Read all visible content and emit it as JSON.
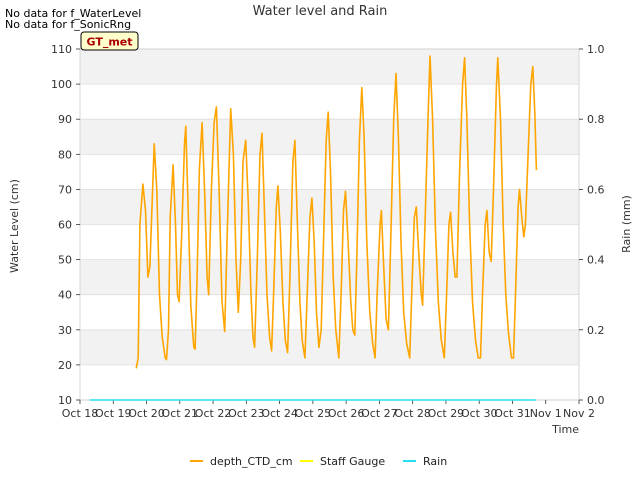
{
  "nodata": [
    "No data for f_WaterLevel",
    "No data for f_SonicRng"
  ],
  "badge": "GT_met",
  "chart_data": {
    "type": "line",
    "title": "Water level and Rain",
    "xlabel": "Time",
    "ylabel": "Water Level (cm)",
    "y2label": "Rain (mm)",
    "ylim": [
      10,
      110
    ],
    "y2lim": [
      0.0,
      1.0
    ],
    "yticks": [
      10,
      20,
      30,
      40,
      50,
      60,
      70,
      80,
      90,
      100,
      110
    ],
    "y2ticks": [
      "0.0",
      "0.2",
      "0.4",
      "0.6",
      "0.8",
      "1.0"
    ],
    "xlim": [
      18,
      33
    ],
    "xticks": [
      {
        "v": 18,
        "label": "Oct 18"
      },
      {
        "v": 19,
        "label": "Oct 19"
      },
      {
        "v": 20,
        "label": "Oct 20"
      },
      {
        "v": 21,
        "label": "Oct 21"
      },
      {
        "v": 22,
        "label": "Oct 22"
      },
      {
        "v": 23,
        "label": "Oct 23"
      },
      {
        "v": 24,
        "label": "Oct 24"
      },
      {
        "v": 25,
        "label": "Oct 25"
      },
      {
        "v": 26,
        "label": "Oct 26"
      },
      {
        "v": 27,
        "label": "Oct 27"
      },
      {
        "v": 28,
        "label": "Oct 28"
      },
      {
        "v": 29,
        "label": "Oct 29"
      },
      {
        "v": 30,
        "label": "Oct 30"
      },
      {
        "v": 31,
        "label": "Oct 31"
      },
      {
        "v": 32,
        "label": "Nov 1"
      },
      {
        "v": 33,
        "label": "Nov 2"
      }
    ],
    "grid": true,
    "legend_position": "bottom-center",
    "series": [
      {
        "name": "depth_CTD_cm",
        "color": "#FFA500",
        "axis": "left",
        "points": [
          [
            19.69,
            19
          ],
          [
            19.75,
            22
          ],
          [
            19.8,
            60
          ],
          [
            19.89,
            71.5
          ],
          [
            19.97,
            64
          ],
          [
            20.04,
            45
          ],
          [
            20.1,
            48
          ],
          [
            20.23,
            83
          ],
          [
            20.31,
            70
          ],
          [
            20.39,
            40
          ],
          [
            20.47,
            28
          ],
          [
            20.56,
            22
          ],
          [
            20.6,
            21.5
          ],
          [
            20.66,
            30
          ],
          [
            20.71,
            62
          ],
          [
            20.8,
            77
          ],
          [
            20.87,
            60
          ],
          [
            20.93,
            40
          ],
          [
            20.98,
            38
          ],
          [
            21.06,
            58
          ],
          [
            21.14,
            83
          ],
          [
            21.18,
            88
          ],
          [
            21.25,
            65
          ],
          [
            21.33,
            37
          ],
          [
            21.42,
            25
          ],
          [
            21.46,
            24.5
          ],
          [
            21.52,
            45
          ],
          [
            21.59,
            76
          ],
          [
            21.67,
            89
          ],
          [
            21.75,
            68
          ],
          [
            21.82,
            45
          ],
          [
            21.87,
            40
          ],
          [
            21.95,
            70
          ],
          [
            22.03,
            89
          ],
          [
            22.1,
            93.5
          ],
          [
            22.18,
            70
          ],
          [
            22.27,
            38
          ],
          [
            22.35,
            29.5
          ],
          [
            22.42,
            55
          ],
          [
            22.53,
            93
          ],
          [
            22.61,
            80
          ],
          [
            22.69,
            50
          ],
          [
            22.76,
            35
          ],
          [
            22.83,
            50
          ],
          [
            22.9,
            78
          ],
          [
            22.98,
            84
          ],
          [
            23.06,
            66
          ],
          [
            23.14,
            40
          ],
          [
            23.2,
            28
          ],
          [
            23.25,
            25
          ],
          [
            23.33,
            50
          ],
          [
            23.41,
            80
          ],
          [
            23.47,
            86
          ],
          [
            23.54,
            65
          ],
          [
            23.62,
            40
          ],
          [
            23.7,
            28
          ],
          [
            23.76,
            24
          ],
          [
            23.82,
            40
          ],
          [
            23.9,
            65
          ],
          [
            23.95,
            71
          ],
          [
            24.02,
            58
          ],
          [
            24.1,
            38
          ],
          [
            24.17,
            27
          ],
          [
            24.24,
            23.5
          ],
          [
            24.31,
            45
          ],
          [
            24.4,
            78
          ],
          [
            24.46,
            84
          ],
          [
            24.53,
            62
          ],
          [
            24.61,
            38
          ],
          [
            24.68,
            27
          ],
          [
            24.76,
            22
          ],
          [
            24.83,
            40
          ],
          [
            24.91,
            62
          ],
          [
            24.97,
            67.5
          ],
          [
            25.04,
            55
          ],
          [
            25.11,
            35
          ],
          [
            25.18,
            25
          ],
          [
            25.25,
            30
          ],
          [
            25.32,
            55
          ],
          [
            25.4,
            84
          ],
          [
            25.46,
            92
          ],
          [
            25.53,
            75
          ],
          [
            25.61,
            45
          ],
          [
            25.69,
            30
          ],
          [
            25.78,
            22
          ],
          [
            25.85,
            40
          ],
          [
            25.92,
            64
          ],
          [
            25.98,
            69.5
          ],
          [
            26.06,
            55
          ],
          [
            26.14,
            38
          ],
          [
            26.2,
            30
          ],
          [
            26.26,
            28.5
          ],
          [
            26.32,
            50
          ],
          [
            26.4,
            84
          ],
          [
            26.47,
            99
          ],
          [
            26.54,
            85
          ],
          [
            26.62,
            55
          ],
          [
            26.71,
            35
          ],
          [
            26.8,
            26
          ],
          [
            26.87,
            22
          ],
          [
            26.93,
            40
          ],
          [
            27.02,
            60
          ],
          [
            27.06,
            64
          ],
          [
            27.13,
            48
          ],
          [
            27.2,
            33
          ],
          [
            27.27,
            30
          ],
          [
            27.34,
            55
          ],
          [
            27.43,
            90
          ],
          [
            27.5,
            103
          ],
          [
            27.57,
            85
          ],
          [
            27.65,
            55
          ],
          [
            27.73,
            35
          ],
          [
            27.82,
            26
          ],
          [
            27.91,
            22
          ],
          [
            27.97,
            40
          ],
          [
            28.05,
            62
          ],
          [
            28.11,
            65
          ],
          [
            28.18,
            52
          ],
          [
            28.26,
            40
          ],
          [
            28.3,
            37
          ],
          [
            28.37,
            60
          ],
          [
            28.46,
            90
          ],
          [
            28.52,
            108
          ],
          [
            28.6,
            90
          ],
          [
            28.68,
            60
          ],
          [
            28.77,
            38
          ],
          [
            28.86,
            27
          ],
          [
            28.95,
            22
          ],
          [
            29.02,
            40
          ],
          [
            29.09,
            60
          ],
          [
            29.14,
            63.5
          ],
          [
            29.21,
            52
          ],
          [
            29.28,
            45
          ],
          [
            29.33,
            45
          ],
          [
            29.41,
            75
          ],
          [
            29.5,
            100
          ],
          [
            29.56,
            107.5
          ],
          [
            29.63,
            90
          ],
          [
            29.71,
            60
          ],
          [
            29.8,
            38
          ],
          [
            29.89,
            27
          ],
          [
            29.97,
            22
          ],
          [
            30.04,
            22
          ],
          [
            30.1,
            40
          ],
          [
            30.18,
            60
          ],
          [
            30.23,
            64
          ],
          [
            30.3,
            52
          ],
          [
            30.36,
            49.5
          ],
          [
            30.43,
            70
          ],
          [
            30.52,
            100
          ],
          [
            30.56,
            107.5
          ],
          [
            30.64,
            90
          ],
          [
            30.72,
            60
          ],
          [
            30.8,
            40
          ],
          [
            30.88,
            29
          ],
          [
            30.97,
            22
          ],
          [
            31.03,
            22
          ],
          [
            31.09,
            40
          ],
          [
            31.17,
            65
          ],
          [
            31.21,
            70
          ],
          [
            31.28,
            62
          ],
          [
            31.34,
            56.5
          ],
          [
            31.39,
            60
          ],
          [
            31.47,
            80
          ],
          [
            31.55,
            100
          ],
          [
            31.61,
            105
          ],
          [
            31.67,
            92
          ],
          [
            31.72,
            75.5
          ]
        ]
      },
      {
        "name": "Staff Gauge",
        "color": "#FFFF00",
        "axis": "left",
        "points": []
      },
      {
        "name": "Rain",
        "color": "#22E0F0",
        "axis": "right",
        "points": [
          [
            18.3,
            0.0
          ],
          [
            31.7,
            0.0
          ]
        ]
      }
    ]
  }
}
